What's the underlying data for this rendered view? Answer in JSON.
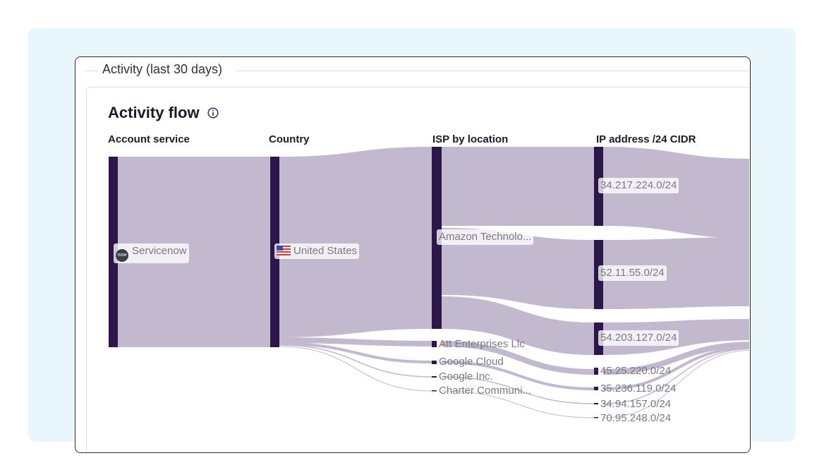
{
  "panel": {
    "legend": "Activity (last 30 days)"
  },
  "card": {
    "title": "Activity flow",
    "info_icon": "info-icon"
  },
  "columns": [
    "Account service",
    "Country",
    "ISP by location",
    "IP address /24 CIDR"
  ],
  "nodes": {
    "account_service": [
      {
        "label": "Servicenow",
        "icon": "servicenow-logo-icon",
        "logo_text": "now"
      }
    ],
    "country": [
      {
        "label": "United States",
        "icon": "us-flag-icon"
      }
    ],
    "isp": [
      {
        "label": "Amazon Technolo..."
      },
      {
        "label": "Att Enterprises Llc"
      },
      {
        "label": "Google Cloud"
      },
      {
        "label": "Google Inc."
      },
      {
        "label": "Charter Communi..."
      }
    ],
    "ip": [
      {
        "label": "34.217.224.0/24"
      },
      {
        "label": "52.11.55.0/24"
      },
      {
        "label": "54.203.127.0/24"
      },
      {
        "label": "45.25.220.0/24"
      },
      {
        "label": "35.236.119.0/24"
      },
      {
        "label": "34.94.157.0/24"
      },
      {
        "label": "70.95.248.0/24"
      }
    ]
  },
  "colors": {
    "node": "#2b1748",
    "link": "#c3b9ce",
    "background": "#e9f7fd"
  }
}
